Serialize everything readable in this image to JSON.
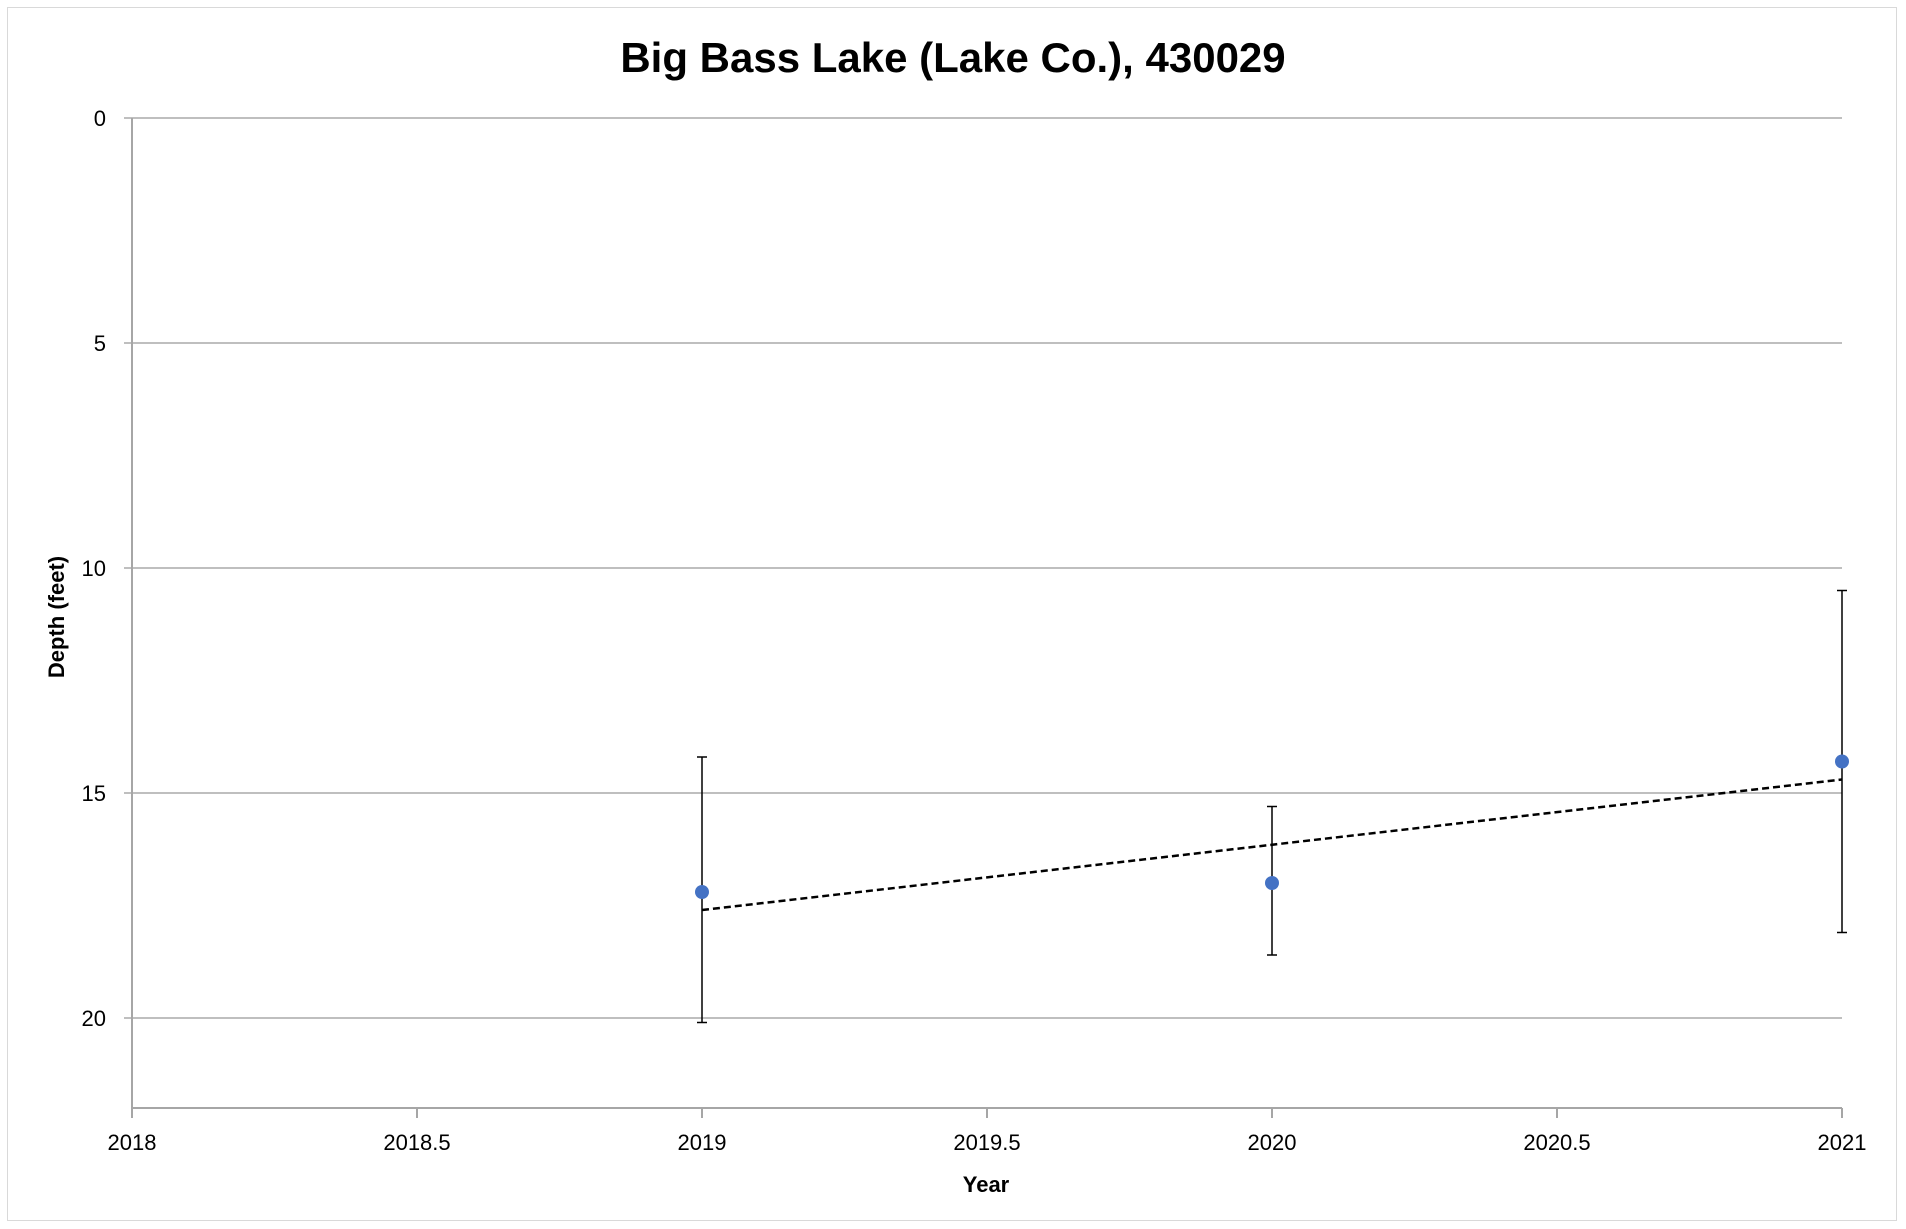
{
  "chart_data": {
    "type": "scatter",
    "title": "Big Bass Lake (Lake Co.), 430029",
    "xlabel": "Year",
    "ylabel": "Depth (feet)",
    "xlim": [
      2018,
      2021
    ],
    "ylim": [
      0,
      22
    ],
    "y_reversed": true,
    "x_ticks": [
      2018,
      2018.5,
      2019,
      2019.5,
      2020,
      2020.5,
      2021
    ],
    "y_ticks": [
      0,
      5,
      10,
      15,
      20
    ],
    "grid": "horizontal",
    "legend": "none",
    "series": [
      {
        "x": [
          2019,
          2020,
          2021
        ],
        "y": [
          17.2,
          17.0,
          14.3
        ],
        "error_low": [
          14.2,
          15.3,
          10.5
        ],
        "error_high": [
          20.1,
          18.6,
          18.1
        ],
        "color": "#4472c4"
      }
    ],
    "trendline": {
      "style": "dashed",
      "color": "#000000",
      "x": [
        2019,
        2021
      ],
      "y": [
        17.6,
        14.7
      ]
    }
  }
}
